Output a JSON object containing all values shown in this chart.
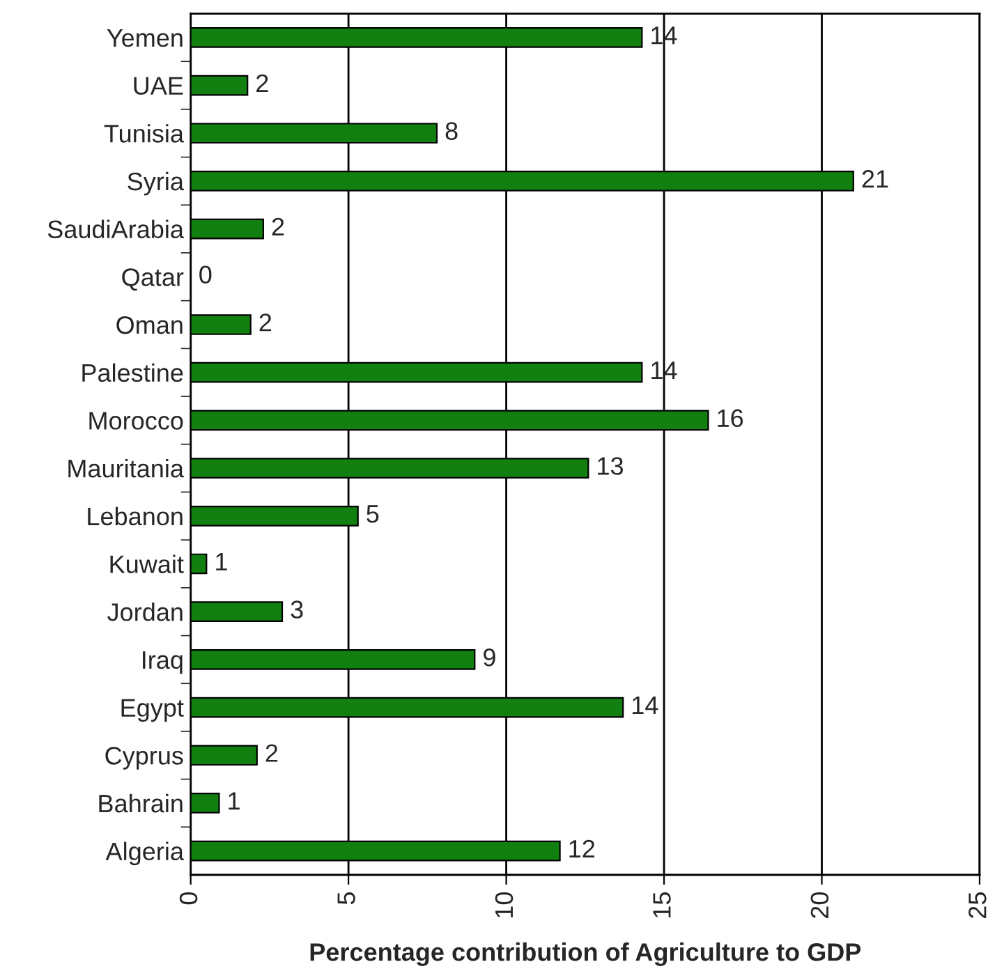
{
  "chart_data": {
    "type": "bar",
    "orientation": "horizontal",
    "xlabel": "Percentage contribution of Agriculture to GDP",
    "categories": [
      "Yemen",
      "UAE",
      "Tunisia",
      "Syria",
      "SaudiArabia",
      "Qatar",
      "Oman",
      "Palestine",
      "Morocco",
      "Mauritania",
      "Lebanon",
      "Kuwait",
      "Jordan",
      "Iraq",
      "Egypt",
      "Cyprus",
      "Bahrain",
      "Algeria"
    ],
    "values": [
      14.3,
      1.8,
      7.8,
      21.0,
      2.3,
      0,
      1.9,
      14.3,
      16.4,
      12.6,
      5.3,
      0.5,
      2.9,
      9.0,
      13.7,
      2.1,
      0.9,
      11.7
    ],
    "value_labels": [
      "14",
      "2",
      "8",
      "21",
      "2",
      "0",
      "2",
      "14",
      "16",
      "13",
      "5",
      "1",
      "3",
      "9",
      "14",
      "2",
      "1",
      "12"
    ],
    "color": "#118011",
    "xlim": [
      0,
      25
    ],
    "xticks": [
      0,
      5,
      10,
      15,
      20,
      25
    ],
    "grid": "x",
    "legend": false
  }
}
